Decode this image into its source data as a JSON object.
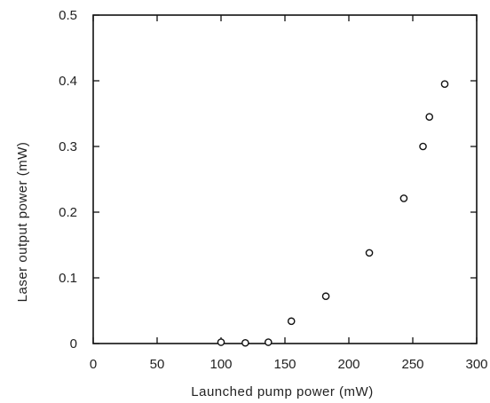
{
  "chart_data": {
    "type": "scatter",
    "xlabel": "Launched pump power  (mW)",
    "ylabel": "Laser output power  (mW)",
    "xlim": [
      0,
      300
    ],
    "ylim": [
      0,
      0.5
    ],
    "x_ticks": [
      0,
      50,
      100,
      150,
      200,
      250,
      300
    ],
    "y_ticks": [
      0,
      0.1,
      0.2,
      0.3,
      0.4,
      0.5
    ],
    "x_tick_labels": [
      "0",
      "50",
      "100",
      "150",
      "200",
      "250",
      "300"
    ],
    "y_tick_labels": [
      "0",
      "0.1",
      "0.2",
      "0.3",
      "0.4",
      "0.5"
    ],
    "grid": false,
    "marker": "open-circle",
    "colors": {
      "axis": "#111111",
      "marker": "#111111"
    },
    "points": [
      {
        "x": 100,
        "y": 0.002
      },
      {
        "x": 119,
        "y": 0.001
      },
      {
        "x": 137,
        "y": 0.002
      },
      {
        "x": 155,
        "y": 0.034
      },
      {
        "x": 182,
        "y": 0.072
      },
      {
        "x": 216,
        "y": 0.138
      },
      {
        "x": 243,
        "y": 0.221
      },
      {
        "x": 258,
        "y": 0.3
      },
      {
        "x": 263,
        "y": 0.345
      },
      {
        "x": 275,
        "y": 0.395
      }
    ]
  }
}
